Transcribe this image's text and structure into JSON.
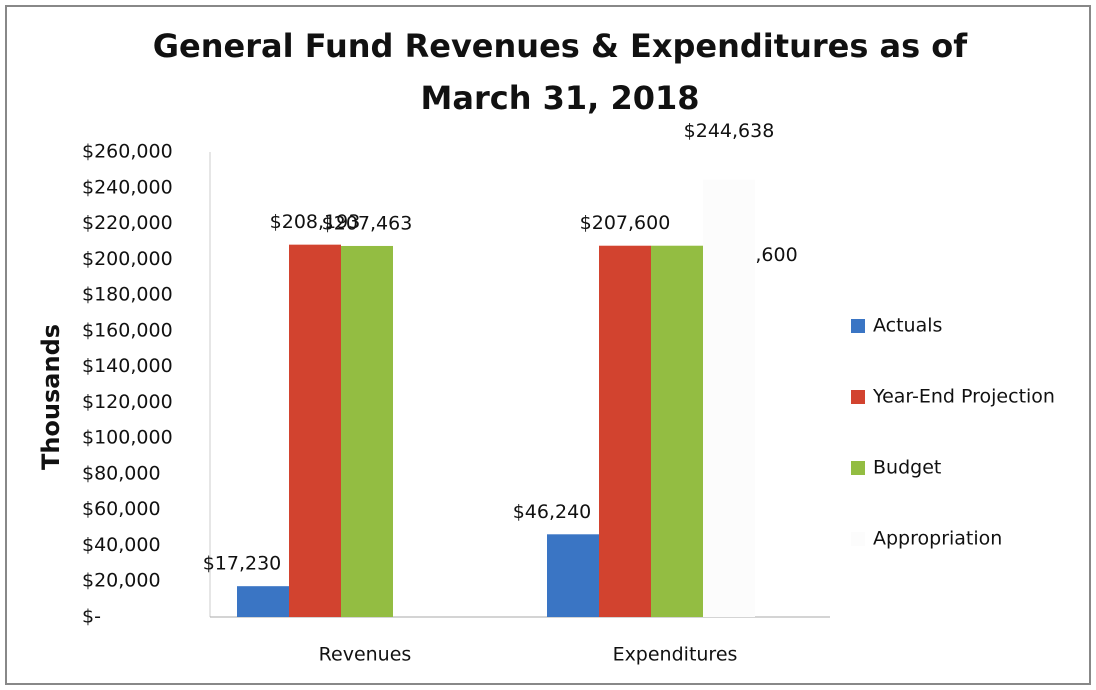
{
  "chart_data": {
    "type": "bar",
    "title": [
      "General Fund Revenues & Expenditures as of",
      "March 31, 2018"
    ],
    "y_label": "Thousands",
    "categories": [
      "Revenues",
      "Expenditures"
    ],
    "series": [
      {
        "name": "Actuals",
        "color": "#3a75c4",
        "values": [
          17230,
          46240
        ],
        "value_labels": [
          "$17,230",
          "$46,240"
        ]
      },
      {
        "name": "Year-End Projection",
        "color": "#d2432f",
        "values": [
          208193,
          207600
        ],
        "value_labels": [
          "$208,193",
          "$207,600"
        ]
      },
      {
        "name": "Budget",
        "color": "#93bd42",
        "values": [
          207463,
          207600
        ],
        "value_labels": [
          "$207,463",
          "$207,600"
        ]
      },
      {
        "name": "Appropriation",
        "color": "#fcfcfc",
        "values": [
          null,
          244638
        ],
        "value_labels": [
          null,
          "$244,638"
        ]
      }
    ],
    "ylim": [
      0,
      260000
    ],
    "yticks": [
      {
        "value": 0,
        "label": "$-"
      },
      {
        "value": 20000,
        "label": "$20,000"
      },
      {
        "value": 40000,
        "label": "$40,000"
      },
      {
        "value": 60000,
        "label": "$60,000"
      },
      {
        "value": 80000,
        "label": "$80,000"
      },
      {
        "value": 100000,
        "label": "$100,000"
      },
      {
        "value": 120000,
        "label": "$120,000"
      },
      {
        "value": 140000,
        "label": "$140,000"
      },
      {
        "value": 160000,
        "label": "$160,000"
      },
      {
        "value": 180000,
        "label": "$180,000"
      },
      {
        "value": 200000,
        "label": "$200,000"
      },
      {
        "value": 220000,
        "label": "$220,000"
      },
      {
        "value": 240000,
        "label": "$240,000"
      },
      {
        "value": 260000,
        "label": "$260,000"
      }
    ],
    "grid": false,
    "legend": "right"
  }
}
